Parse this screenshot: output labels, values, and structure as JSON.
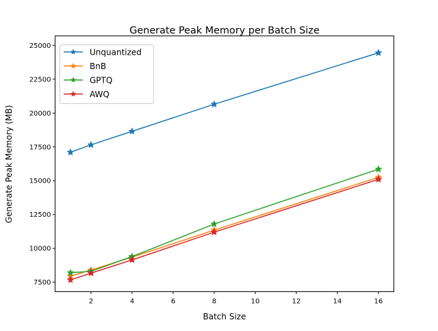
{
  "chart_data": {
    "type": "line",
    "title": "Generate Peak Memory per Batch Size",
    "xlabel": "Batch Size",
    "ylabel": "Generate Peak Memory (MB)",
    "x": [
      1,
      2,
      4,
      8,
      16
    ],
    "xlim": [
      0.25,
      16.75
    ],
    "ylim": [
      6800,
      25700
    ],
    "xticks": [
      2,
      4,
      6,
      8,
      10,
      12,
      14,
      16
    ],
    "yticks": [
      7500,
      10000,
      12500,
      15000,
      17500,
      20000,
      22500,
      25000
    ],
    "marker": "star",
    "grid": false,
    "legend_position": "top-left",
    "series": [
      {
        "name": "Unquantized",
        "color": "#1f77b4",
        "values": [
          17100,
          17650,
          18650,
          20650,
          24450
        ]
      },
      {
        "name": "BnB",
        "color": "#ff7f0e",
        "values": [
          7950,
          8400,
          9350,
          11350,
          15250
        ]
      },
      {
        "name": "GPTQ",
        "color": "#2ca02c",
        "values": [
          8200,
          8300,
          9400,
          11800,
          15850
        ]
      },
      {
        "name": "AWQ",
        "color": "#d62728",
        "values": [
          7670,
          8170,
          9150,
          11200,
          15100
        ]
      }
    ]
  }
}
